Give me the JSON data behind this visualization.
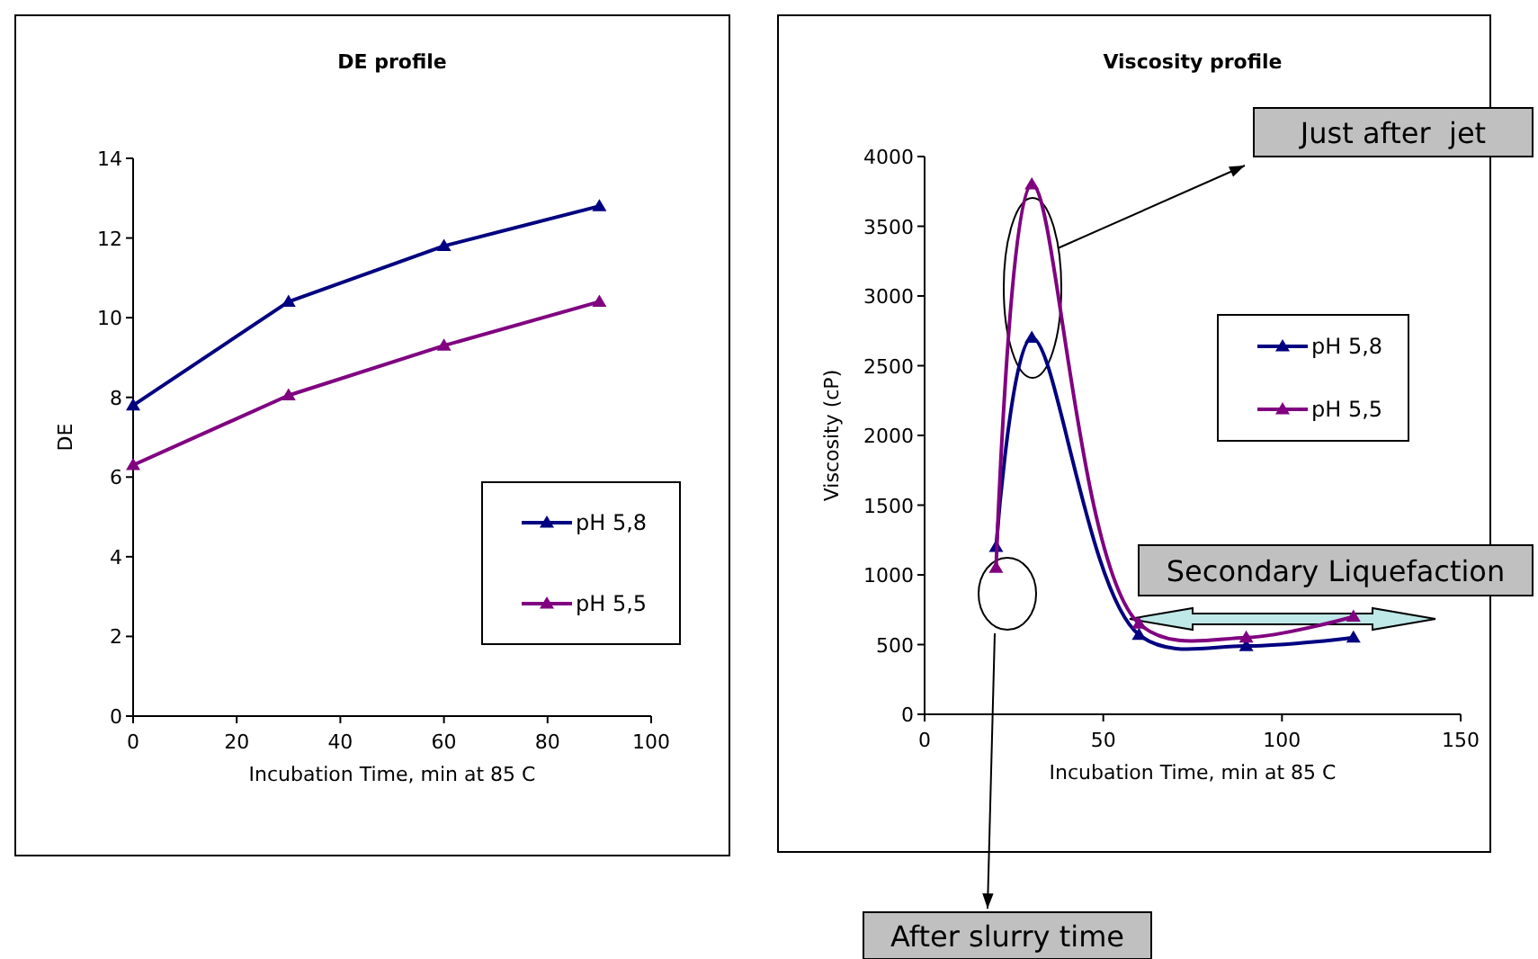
{
  "chart_data": [
    {
      "type": "line",
      "title": "DE profile",
      "xlabel": "Incubation Time, min at 85 C",
      "ylabel": "DE",
      "x": [
        0,
        30,
        60,
        90
      ],
      "xlim": [
        0,
        100
      ],
      "xticks": [
        0,
        20,
        40,
        60,
        80,
        100
      ],
      "ylim": [
        0,
        14
      ],
      "yticks": [
        0,
        2,
        4,
        6,
        8,
        10,
        12,
        14
      ],
      "marker": "triangle",
      "legend": "bottom right",
      "grid": false,
      "series": [
        {
          "name": "pH 5,8",
          "color": "#000080",
          "values": [
            7.8,
            10.4,
            11.8,
            12.8
          ]
        },
        {
          "name": "pH 5,5",
          "color": "#800080",
          "values": [
            6.3,
            8.05,
            9.3,
            10.4
          ]
        }
      ]
    },
    {
      "type": "line",
      "title": "Viscosity profile",
      "xlabel": "Incubation Time, min at 85 C",
      "ylabel": "Viscosity (cP)",
      "x": [
        20,
        30,
        60,
        90,
        120
      ],
      "xlim": [
        0,
        150
      ],
      "xticks": [
        0,
        50,
        100,
        150
      ],
      "ylim": [
        0,
        4000
      ],
      "yticks": [
        0,
        500,
        1000,
        1500,
        2000,
        2500,
        3000,
        3500,
        4000
      ],
      "marker": "triangle",
      "legend": "right",
      "grid": false,
      "series": [
        {
          "name": "pH 5,8",
          "color": "#000080",
          "values": [
            1200,
            2700,
            570,
            490,
            550
          ]
        },
        {
          "name": "pH 5,5",
          "color": "#800080",
          "values": [
            1050,
            3800,
            650,
            550,
            700
          ]
        }
      ],
      "annotations": [
        "Just after  jet",
        "Secondary Liquefaction",
        "After slurry time"
      ]
    }
  ]
}
